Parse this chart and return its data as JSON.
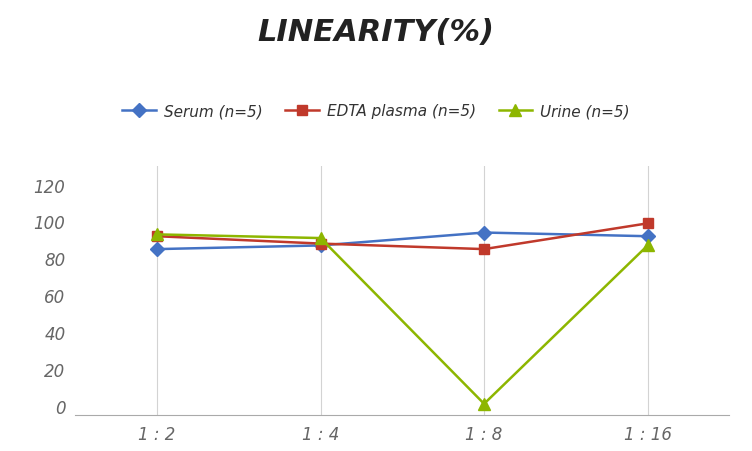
{
  "title": "LINEARITY(%)",
  "x_labels": [
    "1 : 2",
    "1 : 4",
    "1 : 8",
    "1 : 16"
  ],
  "x_positions": [
    0,
    1,
    2,
    3
  ],
  "series": [
    {
      "label": "Serum (n=5)",
      "values": [
        85,
        87,
        94,
        92
      ],
      "color": "#4472C4",
      "marker": "D",
      "markersize": 7
    },
    {
      "label": "EDTA plasma (n=5)",
      "values": [
        92,
        88,
        85,
        99
      ],
      "color": "#C0392B",
      "marker": "s",
      "markersize": 7
    },
    {
      "label": "Urine (n=5)",
      "values": [
        93,
        91,
        1,
        87
      ],
      "color": "#8DB600",
      "marker": "^",
      "markersize": 8
    }
  ],
  "ylim": [
    -5,
    130
  ],
  "yticks": [
    0,
    20,
    40,
    60,
    80,
    100,
    120
  ],
  "background_color": "#FFFFFF",
  "grid_color": "#D3D3D3",
  "title_fontsize": 22,
  "legend_fontsize": 11,
  "tick_fontsize": 12
}
